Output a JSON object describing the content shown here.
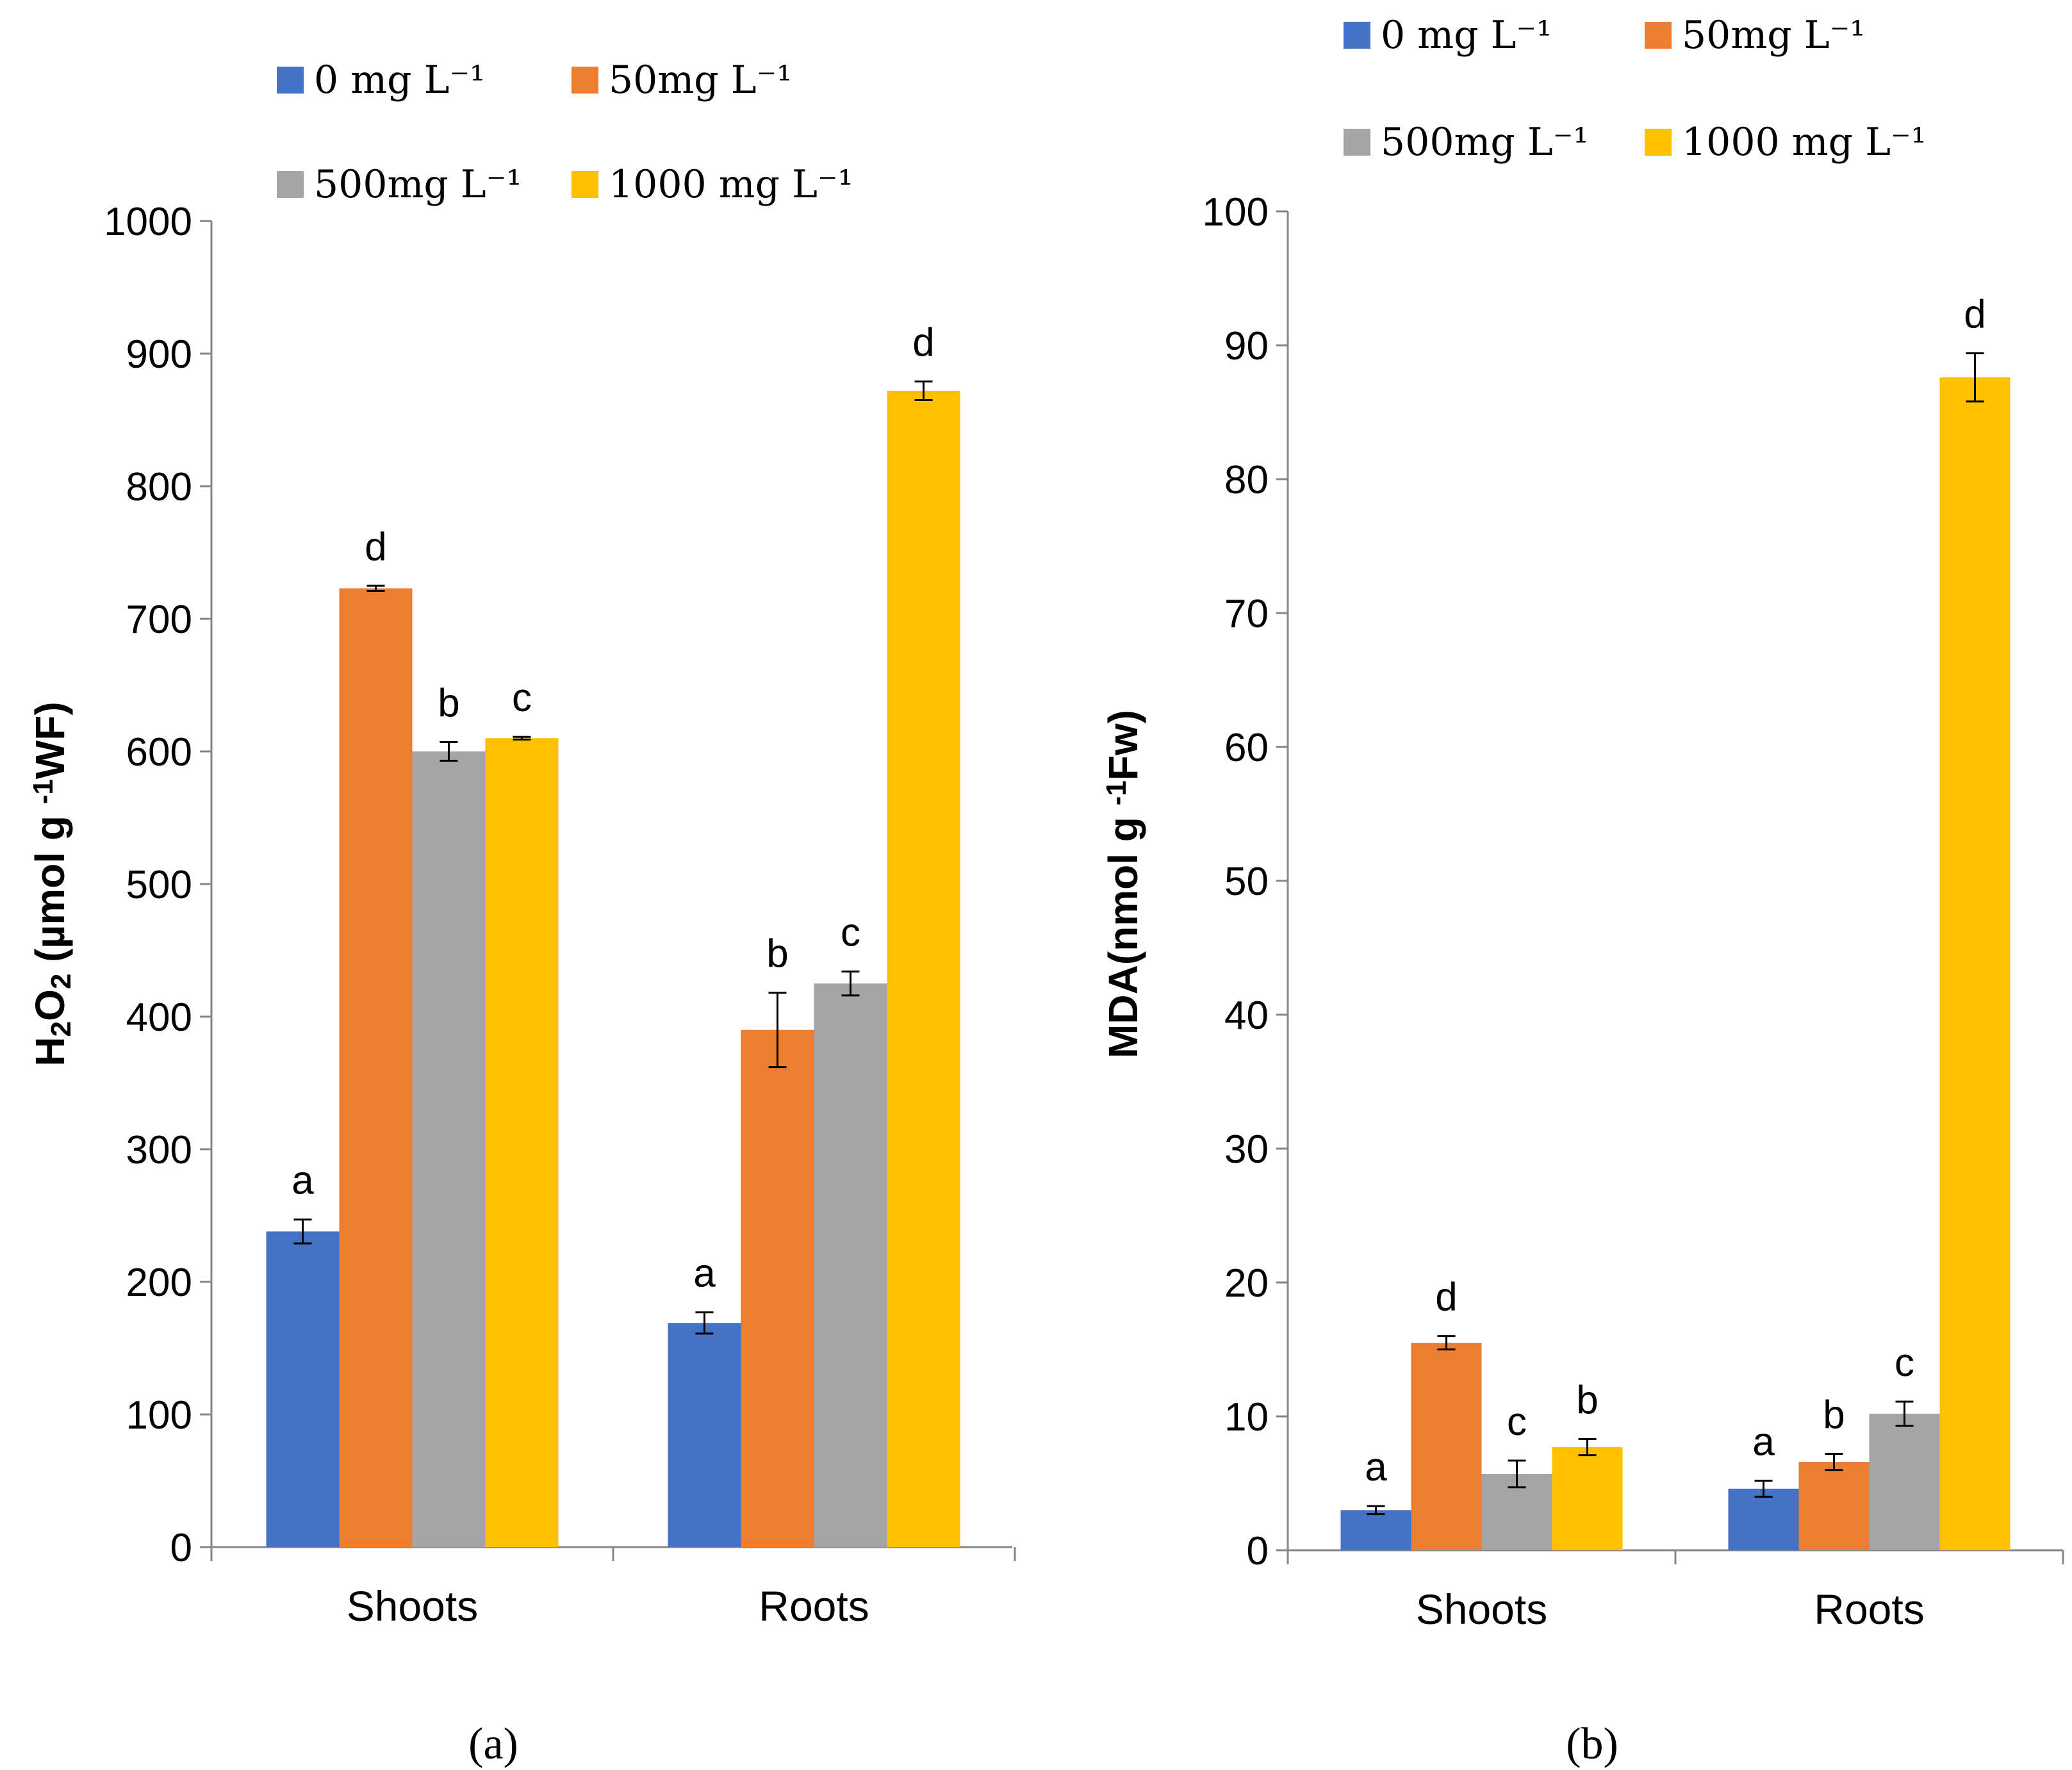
{
  "colors": {
    "0 mg L-1": "#4472C4",
    "50 mg L-1": "#ED7D31",
    "500 mg L-1": "#A5A5A5",
    "1000 mg L-1": "#FFC000",
    "axis": "#868686"
  },
  "panels": [
    {
      "panel_label": "(a)",
      "legend": [
        "0 mg L⁻¹",
        "50mg L⁻¹",
        "500mg L⁻¹",
        "1000 mg L⁻¹"
      ],
      "y_title_parts": [
        "H",
        "2",
        "O",
        "2",
        " (µmol g ",
        "-1",
        "WF)"
      ]
    },
    {
      "panel_label": "(b)",
      "legend": [
        "0 mg L⁻¹",
        "50mg L⁻¹",
        "500mg L⁻¹",
        "1000 mg L⁻¹"
      ],
      "y_title_parts": [
        "MDA(nmol g ",
        "-1",
        "Fw)"
      ]
    }
  ],
  "chart_data": [
    {
      "type": "bar",
      "title": "",
      "xlabel": "",
      "ylabel": "H2O2 (µmol g -1WF)",
      "categories": [
        "Shoots",
        "Roots"
      ],
      "ylim": [
        0,
        1000
      ],
      "yticks": [
        0,
        100,
        200,
        300,
        400,
        500,
        600,
        700,
        800,
        900,
        1000
      ],
      "series": [
        {
          "name": "0 mg L-1",
          "values": [
            238,
            169
          ],
          "errors": [
            9,
            8
          ],
          "letters": [
            "a",
            "a"
          ]
        },
        {
          "name": "50 mg L-1",
          "values": [
            723,
            390
          ],
          "errors": [
            2,
            28
          ],
          "letters": [
            "d",
            "b"
          ]
        },
        {
          "name": "500 mg L-1",
          "values": [
            600,
            425
          ],
          "errors": [
            7,
            9
          ],
          "letters": [
            "b",
            "c"
          ]
        },
        {
          "name": "1000 mg L-1",
          "values": [
            610,
            872
          ],
          "errors": [
            1,
            7
          ],
          "letters": [
            "c",
            "d"
          ]
        }
      ]
    },
    {
      "type": "bar",
      "title": "",
      "xlabel": "",
      "ylabel": "MDA(nmol g -1Fw)",
      "categories": [
        "Shoots",
        "Roots"
      ],
      "ylim": [
        0,
        100
      ],
      "yticks": [
        0,
        10,
        20,
        30,
        40,
        50,
        60,
        70,
        80,
        90,
        100
      ],
      "series": [
        {
          "name": "0 mg L-1",
          "values": [
            3.0,
            4.6
          ],
          "errors": [
            0.3,
            0.6
          ],
          "letters": [
            "a",
            "a"
          ]
        },
        {
          "name": "50 mg L-1",
          "values": [
            15.5,
            6.6
          ],
          "errors": [
            0.5,
            0.6
          ],
          "letters": [
            "d",
            "b"
          ]
        },
        {
          "name": "500 mg L-1",
          "values": [
            5.7,
            10.2
          ],
          "errors": [
            1.0,
            0.9
          ],
          "letters": [
            "c",
            "c"
          ]
        },
        {
          "name": "1000 mg L-1",
          "values": [
            7.7,
            87.6
          ],
          "errors": [
            0.6,
            1.8
          ],
          "letters": [
            "b",
            "d"
          ]
        }
      ]
    }
  ]
}
